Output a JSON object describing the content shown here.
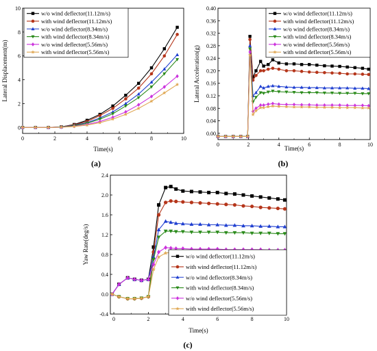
{
  "panels": [
    {
      "label": "(a)"
    },
    {
      "label": "(b)"
    },
    {
      "label": "(c)"
    }
  ],
  "chart_data": [
    {
      "type": "line",
      "title": "",
      "xlabel": "Time(s)",
      "ylabel": "Lateral Displacement(m)",
      "xlim": [
        0,
        10
      ],
      "ylim": [
        -0.5,
        10
      ],
      "xticks": [
        "0",
        "2",
        "4",
        "6",
        "8",
        "10"
      ],
      "yticks": [
        "0",
        "2",
        "4",
        "6",
        "8",
        "10"
      ],
      "legend_position": "top-left",
      "x": [
        0,
        0.8,
        1.6,
        2.4,
        3.2,
        4.0,
        4.8,
        5.6,
        6.4,
        7.2,
        8.0,
        8.8,
        9.6
      ],
      "series": [
        {
          "name": "w/o wind deflector(11.12m/s)",
          "color": "#000000",
          "marker": "square",
          "values": [
            0,
            0,
            0,
            0.05,
            0.25,
            0.6,
            1.1,
            1.8,
            2.7,
            3.7,
            5.0,
            6.6,
            8.4
          ]
        },
        {
          "name": "with wind deflector(11.12m/s)",
          "color": "#b5351a",
          "marker": "circle",
          "values": [
            0,
            0,
            0,
            0.05,
            0.22,
            0.5,
            1.0,
            1.6,
            2.4,
            3.3,
            4.5,
            6.0,
            7.8
          ]
        },
        {
          "name": "w/o wind deflector(8.34m/s)",
          "color": "#1f3fd0",
          "marker": "triangle-up",
          "values": [
            0,
            0,
            0,
            0.04,
            0.18,
            0.4,
            0.8,
            1.3,
            2.0,
            2.8,
            3.8,
            4.9,
            6.1
          ]
        },
        {
          "name": "with wind deflector(8.34m/s)",
          "color": "#2a8a1a",
          "marker": "triangle-down",
          "values": [
            0,
            0,
            0,
            0.03,
            0.15,
            0.35,
            0.7,
            1.15,
            1.8,
            2.5,
            3.4,
            4.5,
            5.7
          ]
        },
        {
          "name": "w/o wind deflector(5.56m/s)",
          "color": "#cc33dd",
          "marker": "diamond",
          "values": [
            0,
            0,
            0,
            0.02,
            0.1,
            0.25,
            0.5,
            0.85,
            1.3,
            1.9,
            2.6,
            3.4,
            4.3
          ]
        },
        {
          "name": "with wind deflector(5.56m/s)",
          "color": "#e0a855",
          "marker": "star",
          "values": [
            0,
            0,
            0,
            0.02,
            0.08,
            0.2,
            0.4,
            0.7,
            1.1,
            1.6,
            2.2,
            2.9,
            3.6
          ]
        }
      ]
    },
    {
      "type": "line",
      "title": "",
      "xlabel": "Time(s)",
      "ylabel": "Lateral Acceleration(g)",
      "xlim": [
        0,
        10
      ],
      "ylim": [
        -0.02,
        0.4
      ],
      "xticks": [
        "0",
        "2",
        "4",
        "6",
        "8",
        "10"
      ],
      "yticks": [
        "0.00",
        "0.04",
        "0.08",
        "0.12",
        "0.16",
        "0.20",
        "0.24",
        "0.28",
        "0.32",
        "0.36",
        "0.40"
      ],
      "legend_position": "top-right",
      "x": [
        0,
        0.5,
        1.0,
        1.5,
        1.95,
        2.1,
        2.3,
        2.5,
        2.8,
        3.0,
        3.3,
        3.6,
        4.0,
        4.5,
        5.0,
        5.5,
        6.0,
        6.5,
        7.0,
        7.5,
        8.0,
        8.5,
        9.0,
        9.5,
        9.9
      ],
      "series": [
        {
          "name": "w/o wind deflector(11.12m/s)",
          "color": "#000000",
          "marker": "square",
          "values": [
            -0.01,
            -0.01,
            -0.01,
            -0.01,
            -0.01,
            0.31,
            0.18,
            0.2,
            0.23,
            0.215,
            0.22,
            0.235,
            0.225,
            0.222,
            0.222,
            0.22,
            0.22,
            0.218,
            0.216,
            0.215,
            0.214,
            0.212,
            0.21,
            0.208,
            0.205
          ]
        },
        {
          "name": "with wind deflector(11.12m/s)",
          "color": "#b5351a",
          "marker": "circle",
          "values": [
            -0.01,
            -0.01,
            -0.01,
            -0.01,
            -0.01,
            0.3,
            0.17,
            0.185,
            0.2,
            0.2,
            0.205,
            0.208,
            0.205,
            0.2,
            0.2,
            0.198,
            0.196,
            0.195,
            0.194,
            0.193,
            0.192,
            0.19,
            0.19,
            0.189,
            0.188
          ]
        },
        {
          "name": "w/o wind deflector(8.34m/s)",
          "color": "#1f3fd0",
          "marker": "triangle-up",
          "values": [
            -0.01,
            -0.01,
            -0.01,
            -0.01,
            -0.01,
            0.28,
            0.12,
            0.13,
            0.15,
            0.145,
            0.15,
            0.152,
            0.15,
            0.148,
            0.147,
            0.147,
            0.146,
            0.146,
            0.145,
            0.145,
            0.145,
            0.145,
            0.144,
            0.144,
            0.143
          ]
        },
        {
          "name": "with wind deflector(8.34m/s)",
          "color": "#2a8a1a",
          "marker": "triangle-down",
          "values": [
            -0.01,
            -0.01,
            -0.01,
            -0.01,
            -0.01,
            0.27,
            0.1,
            0.115,
            0.13,
            0.128,
            0.132,
            0.135,
            0.133,
            0.132,
            0.131,
            0.13,
            0.13,
            0.13,
            0.129,
            0.129,
            0.128,
            0.128,
            0.128,
            0.127,
            0.127
          ]
        },
        {
          "name": "w/o wind deflector(5.56m/s)",
          "color": "#cc33dd",
          "marker": "diamond",
          "values": [
            -0.01,
            -0.01,
            -0.01,
            -0.01,
            -0.01,
            0.26,
            0.07,
            0.08,
            0.09,
            0.09,
            0.093,
            0.095,
            0.093,
            0.092,
            0.092,
            0.091,
            0.091,
            0.09,
            0.09,
            0.09,
            0.09,
            0.089,
            0.089,
            0.089,
            0.088
          ]
        },
        {
          "name": "with wind deflector(5.56m/s)",
          "color": "#e0a855",
          "marker": "star",
          "values": [
            -0.01,
            -0.01,
            -0.01,
            -0.01,
            -0.01,
            0.25,
            0.06,
            0.072,
            0.082,
            0.082,
            0.085,
            0.087,
            0.086,
            0.085,
            0.084,
            0.084,
            0.084,
            0.083,
            0.083,
            0.083,
            0.082,
            0.082,
            0.082,
            0.081,
            0.081
          ]
        }
      ]
    },
    {
      "type": "line",
      "title": "",
      "xlabel": "Time(s)",
      "ylabel": "Yaw Rate(deg/s)",
      "xlim": [
        -0.2,
        10
      ],
      "ylim": [
        -0.4,
        2.4
      ],
      "xticks": [
        "0",
        "2",
        "4",
        "6",
        "8",
        "10"
      ],
      "yticks": [
        "-0.4",
        "0.0",
        "0.4",
        "0.8",
        "1.2",
        "1.6",
        "2.0",
        "2.4"
      ],
      "legend_position": "bottom-right",
      "x": [
        -0.1,
        0.3,
        0.8,
        1.2,
        1.6,
        2.0,
        2.3,
        2.6,
        3.0,
        3.3,
        3.6,
        4.0,
        4.5,
        5.0,
        5.5,
        6.0,
        6.5,
        7.0,
        7.5,
        8.0,
        8.5,
        9.0,
        9.5,
        9.9
      ],
      "series": [
        {
          "name": "w/o wind deflector(11.12m/s)",
          "color": "#000000",
          "marker": "square",
          "values": [
            0.0,
            0.2,
            0.33,
            0.3,
            0.28,
            0.3,
            0.95,
            1.8,
            2.15,
            2.17,
            2.12,
            2.08,
            2.07,
            2.06,
            2.05,
            2.05,
            2.03,
            2.02,
            2.0,
            1.98,
            1.96,
            1.94,
            1.92,
            1.9
          ]
        },
        {
          "name": "with wind deflector(11.12m/s)",
          "color": "#b5351a",
          "marker": "circle",
          "values": [
            0.0,
            -0.05,
            -0.09,
            -0.09,
            -0.08,
            -0.05,
            0.85,
            1.6,
            1.85,
            1.88,
            1.87,
            1.86,
            1.85,
            1.84,
            1.83,
            1.82,
            1.81,
            1.8,
            1.78,
            1.77,
            1.75,
            1.74,
            1.73,
            1.72
          ]
        },
        {
          "name": "w/o wind deflector(8.34m/s)",
          "color": "#1f3fd0",
          "marker": "triangle-up",
          "values": [
            0.0,
            0.2,
            0.33,
            0.3,
            0.28,
            0.3,
            0.75,
            1.3,
            1.47,
            1.45,
            1.43,
            1.42,
            1.41,
            1.41,
            1.4,
            1.4,
            1.39,
            1.39,
            1.38,
            1.38,
            1.37,
            1.37,
            1.36,
            1.36
          ]
        },
        {
          "name": "with wind deflector(8.34m/s)",
          "color": "#2a8a1a",
          "marker": "triangle-down",
          "values": [
            0.0,
            -0.05,
            -0.09,
            -0.09,
            -0.08,
            -0.05,
            0.7,
            1.15,
            1.27,
            1.27,
            1.26,
            1.26,
            1.25,
            1.25,
            1.25,
            1.25,
            1.24,
            1.24,
            1.24,
            1.23,
            1.23,
            1.23,
            1.22,
            1.22
          ]
        },
        {
          "name": "w/o wind deflector(5.56m/s)",
          "color": "#cc33dd",
          "marker": "diamond",
          "values": [
            0.0,
            0.2,
            0.33,
            0.3,
            0.28,
            0.3,
            0.6,
            0.85,
            0.94,
            0.93,
            0.92,
            0.92,
            0.91,
            0.91,
            0.91,
            0.91,
            0.9,
            0.9,
            0.9,
            0.9,
            0.9,
            0.89,
            0.89,
            0.89
          ]
        },
        {
          "name": "with wind deflector(5.56m/s)",
          "color": "#e0a855",
          "marker": "star",
          "values": [
            0.0,
            -0.05,
            -0.09,
            -0.09,
            -0.08,
            -0.05,
            0.5,
            0.75,
            0.83,
            0.84,
            0.84,
            0.83,
            0.83,
            0.83,
            0.82,
            0.82,
            0.82,
            0.82,
            0.82,
            0.81,
            0.81,
            0.81,
            0.81,
            0.8
          ]
        }
      ]
    }
  ]
}
